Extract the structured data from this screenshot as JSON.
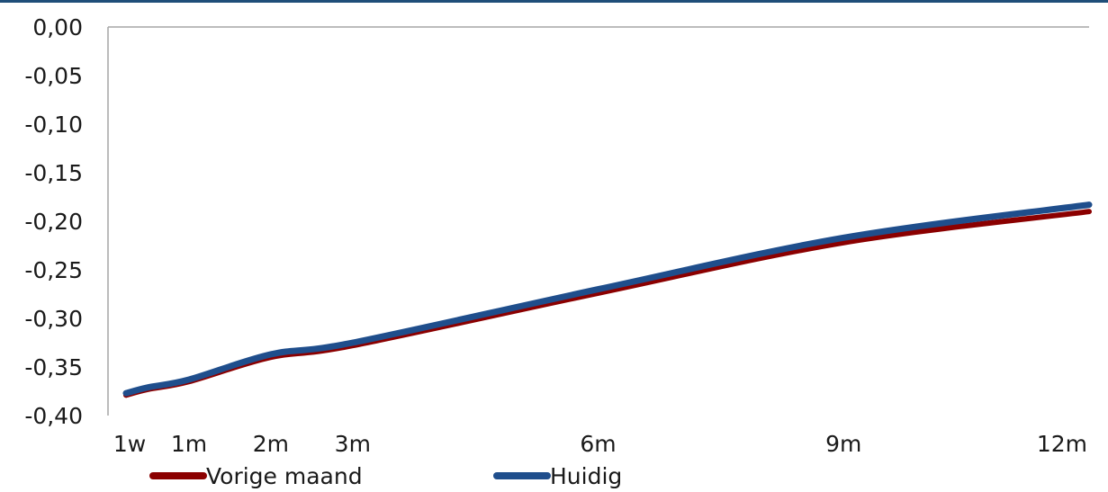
{
  "colors": {
    "top_rule": "#1f4e79",
    "axis": "#a6a6a6",
    "vorige": "#8b0000",
    "huidig": "#1f4e8c"
  },
  "chart_data": {
    "type": "line",
    "title": "",
    "xlabel": "",
    "ylabel": "",
    "x_ticks": [
      "1w",
      "1m",
      "2m",
      "3m",
      "6m",
      "9m",
      "12m"
    ],
    "x_tick_months": [
      0.23,
      1,
      2,
      3,
      6,
      9,
      12
    ],
    "xlim": [
      0.23,
      12
    ],
    "y_ticks": [
      "0,00",
      "-0,05",
      "-0,10",
      "-0,15",
      "-0,20",
      "-0,25",
      "-0,30",
      "-0,35",
      "-0,40"
    ],
    "ylim": [
      -0.4,
      0.0
    ],
    "grid": false,
    "legend_position": "bottom",
    "series": [
      {
        "name": "Vorige maand",
        "color": "#8b0000",
        "x": [
          0.23,
          0.5,
          1,
          2,
          3,
          6,
          9,
          12
        ],
        "y": [
          -0.379,
          -0.373,
          -0.365,
          -0.34,
          -0.328,
          -0.274,
          -0.222,
          -0.19
        ]
      },
      {
        "name": "Huidig",
        "color": "#1f4e8c",
        "x": [
          0.23,
          0.5,
          1,
          2,
          3,
          6,
          9,
          12
        ],
        "y": [
          -0.377,
          -0.371,
          -0.363,
          -0.337,
          -0.325,
          -0.27,
          -0.217,
          -0.183
        ]
      }
    ]
  }
}
